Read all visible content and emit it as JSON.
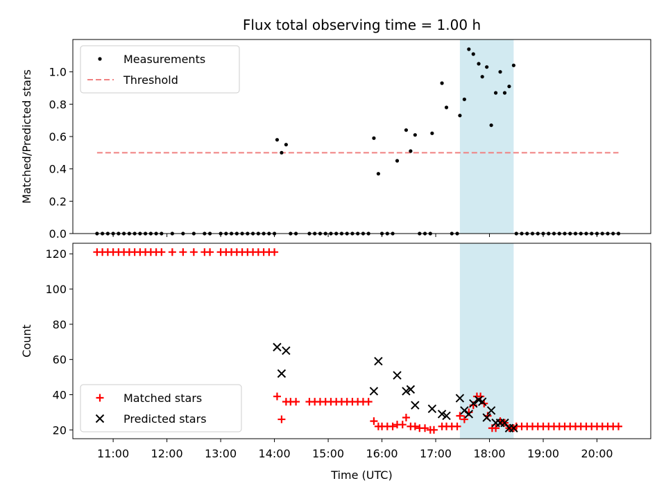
{
  "figure": {
    "title": "Flux total observing time = 1.00 h",
    "background": "#ffffff"
  },
  "chart_data": [
    {
      "type": "scatter",
      "ylabel": "Matched/Predicted stars",
      "xlabel": "",
      "xlim": [
        "10:15",
        "21:00"
      ],
      "ylim": [
        0,
        1.2
      ],
      "yticks": [
        0.0,
        0.2,
        0.4,
        0.6,
        0.8,
        1.0
      ],
      "ytick_labels": [
        "0.0",
        "0.2",
        "0.4",
        "0.6",
        "0.8",
        "1.0"
      ],
      "grid": false,
      "legend_position": "upper-left",
      "shaded_region": {
        "x0": "17:27",
        "x1": "18:27",
        "color": "#add8e6"
      },
      "threshold": {
        "name": "Threshold",
        "y": 0.5,
        "x0": "10:42",
        "x1": "20:24",
        "color": "#f08080"
      },
      "series": [
        {
          "name": "Measurements",
          "marker": "dot",
          "color": "#000000",
          "points": [
            [
              "10:42",
              0
            ],
            [
              "10:48",
              0
            ],
            [
              "10:54",
              0
            ],
            [
              "11:00",
              0
            ],
            [
              "11:06",
              0
            ],
            [
              "11:12",
              0
            ],
            [
              "11:18",
              0
            ],
            [
              "11:24",
              0
            ],
            [
              "11:30",
              0
            ],
            [
              "11:36",
              0
            ],
            [
              "11:42",
              0
            ],
            [
              "11:48",
              0
            ],
            [
              "11:54",
              0
            ],
            [
              "12:06",
              0
            ],
            [
              "12:18",
              0
            ],
            [
              "12:30",
              0
            ],
            [
              "12:42",
              0
            ],
            [
              "12:48",
              0
            ],
            [
              "13:00",
              0
            ],
            [
              "13:06",
              0
            ],
            [
              "13:12",
              0
            ],
            [
              "13:18",
              0
            ],
            [
              "13:24",
              0
            ],
            [
              "13:30",
              0
            ],
            [
              "13:36",
              0
            ],
            [
              "13:42",
              0
            ],
            [
              "13:48",
              0
            ],
            [
              "13:54",
              0
            ],
            [
              "14:00",
              0
            ],
            [
              "14:03",
              0.58
            ],
            [
              "14:08",
              0.5
            ],
            [
              "14:13",
              0.55
            ],
            [
              "14:18",
              0
            ],
            [
              "14:24",
              0
            ],
            [
              "14:39",
              0
            ],
            [
              "14:45",
              0
            ],
            [
              "14:51",
              0
            ],
            [
              "14:57",
              0
            ],
            [
              "15:03",
              0
            ],
            [
              "15:09",
              0
            ],
            [
              "15:15",
              0
            ],
            [
              "15:21",
              0
            ],
            [
              "15:27",
              0
            ],
            [
              "15:33",
              0
            ],
            [
              "15:39",
              0
            ],
            [
              "15:45",
              0
            ],
            [
              "15:51",
              0.59
            ],
            [
              "15:56",
              0.37
            ],
            [
              "16:00",
              0
            ],
            [
              "16:06",
              0
            ],
            [
              "16:12",
              0
            ],
            [
              "16:17",
              0.45
            ],
            [
              "16:27",
              0.64
            ],
            [
              "16:32",
              0.51
            ],
            [
              "16:37",
              0.61
            ],
            [
              "16:42",
              0
            ],
            [
              "16:48",
              0
            ],
            [
              "16:54",
              0
            ],
            [
              "16:56",
              0.62
            ],
            [
              "17:07",
              0.93
            ],
            [
              "17:12",
              0.78
            ],
            [
              "17:18",
              0
            ],
            [
              "17:24",
              0
            ],
            [
              "17:27",
              0.73
            ],
            [
              "17:32",
              0.83
            ],
            [
              "17:37",
              1.14
            ],
            [
              "17:42",
              1.11
            ],
            [
              "17:48",
              1.05
            ],
            [
              "17:52",
              0.97
            ],
            [
              "17:57",
              1.03
            ],
            [
              "18:02",
              0.67
            ],
            [
              "18:07",
              0.87
            ],
            [
              "18:12",
              1.0
            ],
            [
              "18:17",
              0.87
            ],
            [
              "18:22",
              0.91
            ],
            [
              "18:27",
              1.04
            ],
            [
              "18:30",
              0
            ],
            [
              "18:36",
              0
            ],
            [
              "18:42",
              0
            ],
            [
              "18:48",
              0
            ],
            [
              "18:54",
              0
            ],
            [
              "19:00",
              0
            ],
            [
              "19:06",
              0
            ],
            [
              "19:12",
              0
            ],
            [
              "19:18",
              0
            ],
            [
              "19:24",
              0
            ],
            [
              "19:30",
              0
            ],
            [
              "19:36",
              0
            ],
            [
              "19:42",
              0
            ],
            [
              "19:48",
              0
            ],
            [
              "19:54",
              0
            ],
            [
              "20:00",
              0
            ],
            [
              "20:06",
              0
            ],
            [
              "20:12",
              0
            ],
            [
              "20:18",
              0
            ],
            [
              "20:24",
              0
            ]
          ]
        }
      ]
    },
    {
      "type": "scatter",
      "ylabel": "Count",
      "xlabel": "Time (UTC)",
      "xlim": [
        "10:15",
        "21:00"
      ],
      "ylim": [
        15,
        126
      ],
      "yticks": [
        20,
        40,
        60,
        80,
        100,
        120
      ],
      "ytick_labels": [
        "20",
        "40",
        "60",
        "80",
        "100",
        "120"
      ],
      "xticks": [
        "11:00",
        "12:00",
        "13:00",
        "14:00",
        "15:00",
        "16:00",
        "17:00",
        "18:00",
        "19:00",
        "20:00"
      ],
      "xtick_labels": [
        "11:00",
        "12:00",
        "13:00",
        "14:00",
        "15:00",
        "16:00",
        "17:00",
        "18:00",
        "19:00",
        "20:00"
      ],
      "grid": false,
      "legend_position": "lower-left",
      "shaded_region": {
        "x0": "17:27",
        "x1": "18:27",
        "color": "#add8e6"
      },
      "series": [
        {
          "name": "Matched stars",
          "marker": "plus",
          "color": "#ff0000",
          "points": [
            [
              "10:42",
              121
            ],
            [
              "10:48",
              121
            ],
            [
              "10:54",
              121
            ],
            [
              "11:00",
              121
            ],
            [
              "11:06",
              121
            ],
            [
              "11:12",
              121
            ],
            [
              "11:18",
              121
            ],
            [
              "11:24",
              121
            ],
            [
              "11:30",
              121
            ],
            [
              "11:36",
              121
            ],
            [
              "11:42",
              121
            ],
            [
              "11:48",
              121
            ],
            [
              "11:54",
              121
            ],
            [
              "12:06",
              121
            ],
            [
              "12:18",
              121
            ],
            [
              "12:30",
              121
            ],
            [
              "12:42",
              121
            ],
            [
              "12:48",
              121
            ],
            [
              "13:00",
              121
            ],
            [
              "13:06",
              121
            ],
            [
              "13:12",
              121
            ],
            [
              "13:18",
              121
            ],
            [
              "13:24",
              121
            ],
            [
              "13:30",
              121
            ],
            [
              "13:36",
              121
            ],
            [
              "13:42",
              121
            ],
            [
              "13:48",
              121
            ],
            [
              "13:54",
              121
            ],
            [
              "14:00",
              121
            ],
            [
              "14:03",
              39
            ],
            [
              "14:08",
              26
            ],
            [
              "14:13",
              36
            ],
            [
              "14:18",
              36
            ],
            [
              "14:24",
              36
            ],
            [
              "14:39",
              36
            ],
            [
              "14:45",
              36
            ],
            [
              "14:51",
              36
            ],
            [
              "14:57",
              36
            ],
            [
              "15:03",
              36
            ],
            [
              "15:09",
              36
            ],
            [
              "15:15",
              36
            ],
            [
              "15:21",
              36
            ],
            [
              "15:27",
              36
            ],
            [
              "15:33",
              36
            ],
            [
              "15:39",
              36
            ],
            [
              "15:45",
              36
            ],
            [
              "15:51",
              25
            ],
            [
              "15:56",
              22
            ],
            [
              "16:00",
              22
            ],
            [
              "16:06",
              22
            ],
            [
              "16:12",
              22
            ],
            [
              "16:17",
              23
            ],
            [
              "16:23",
              23
            ],
            [
              "16:27",
              27
            ],
            [
              "16:32",
              22
            ],
            [
              "16:37",
              22
            ],
            [
              "16:42",
              21
            ],
            [
              "16:48",
              21
            ],
            [
              "16:54",
              20
            ],
            [
              "16:58",
              20
            ],
            [
              "17:07",
              22
            ],
            [
              "17:12",
              22
            ],
            [
              "17:18",
              22
            ],
            [
              "17:24",
              22
            ],
            [
              "17:27",
              28
            ],
            [
              "17:32",
              26
            ],
            [
              "17:37",
              30
            ],
            [
              "17:42",
              34
            ],
            [
              "17:46",
              39
            ],
            [
              "17:50",
              39
            ],
            [
              "17:54",
              35
            ],
            [
              "17:58",
              28
            ],
            [
              "18:03",
              21
            ],
            [
              "18:07",
              21
            ],
            [
              "18:12",
              25
            ],
            [
              "18:17",
              24
            ],
            [
              "18:22",
              21
            ],
            [
              "18:27",
              21
            ],
            [
              "18:30",
              22
            ],
            [
              "18:36",
              22
            ],
            [
              "18:42",
              22
            ],
            [
              "18:48",
              22
            ],
            [
              "18:54",
              22
            ],
            [
              "19:00",
              22
            ],
            [
              "19:06",
              22
            ],
            [
              "19:12",
              22
            ],
            [
              "19:18",
              22
            ],
            [
              "19:24",
              22
            ],
            [
              "19:30",
              22
            ],
            [
              "19:36",
              22
            ],
            [
              "19:42",
              22
            ],
            [
              "19:48",
              22
            ],
            [
              "19:54",
              22
            ],
            [
              "20:00",
              22
            ],
            [
              "20:06",
              22
            ],
            [
              "20:12",
              22
            ],
            [
              "20:18",
              22
            ],
            [
              "20:24",
              22
            ]
          ]
        },
        {
          "name": "Predicted stars",
          "marker": "x",
          "color": "#000000",
          "points": [
            [
              "14:03",
              67
            ],
            [
              "14:08",
              52
            ],
            [
              "14:13",
              65
            ],
            [
              "15:51",
              42
            ],
            [
              "15:56",
              59
            ],
            [
              "16:17",
              51
            ],
            [
              "16:27",
              42
            ],
            [
              "16:32",
              43
            ],
            [
              "16:37",
              34
            ],
            [
              "16:56",
              32
            ],
            [
              "17:07",
              29
            ],
            [
              "17:12",
              28
            ],
            [
              "17:27",
              38
            ],
            [
              "17:32",
              31
            ],
            [
              "17:37",
              29
            ],
            [
              "17:42",
              35
            ],
            [
              "17:48",
              37
            ],
            [
              "17:52",
              36
            ],
            [
              "17:57",
              27
            ],
            [
              "18:02",
              31
            ],
            [
              "18:07",
              24
            ],
            [
              "18:12",
              24
            ],
            [
              "18:17",
              24
            ],
            [
              "18:22",
              21
            ],
            [
              "18:27",
              21
            ]
          ]
        }
      ]
    }
  ]
}
